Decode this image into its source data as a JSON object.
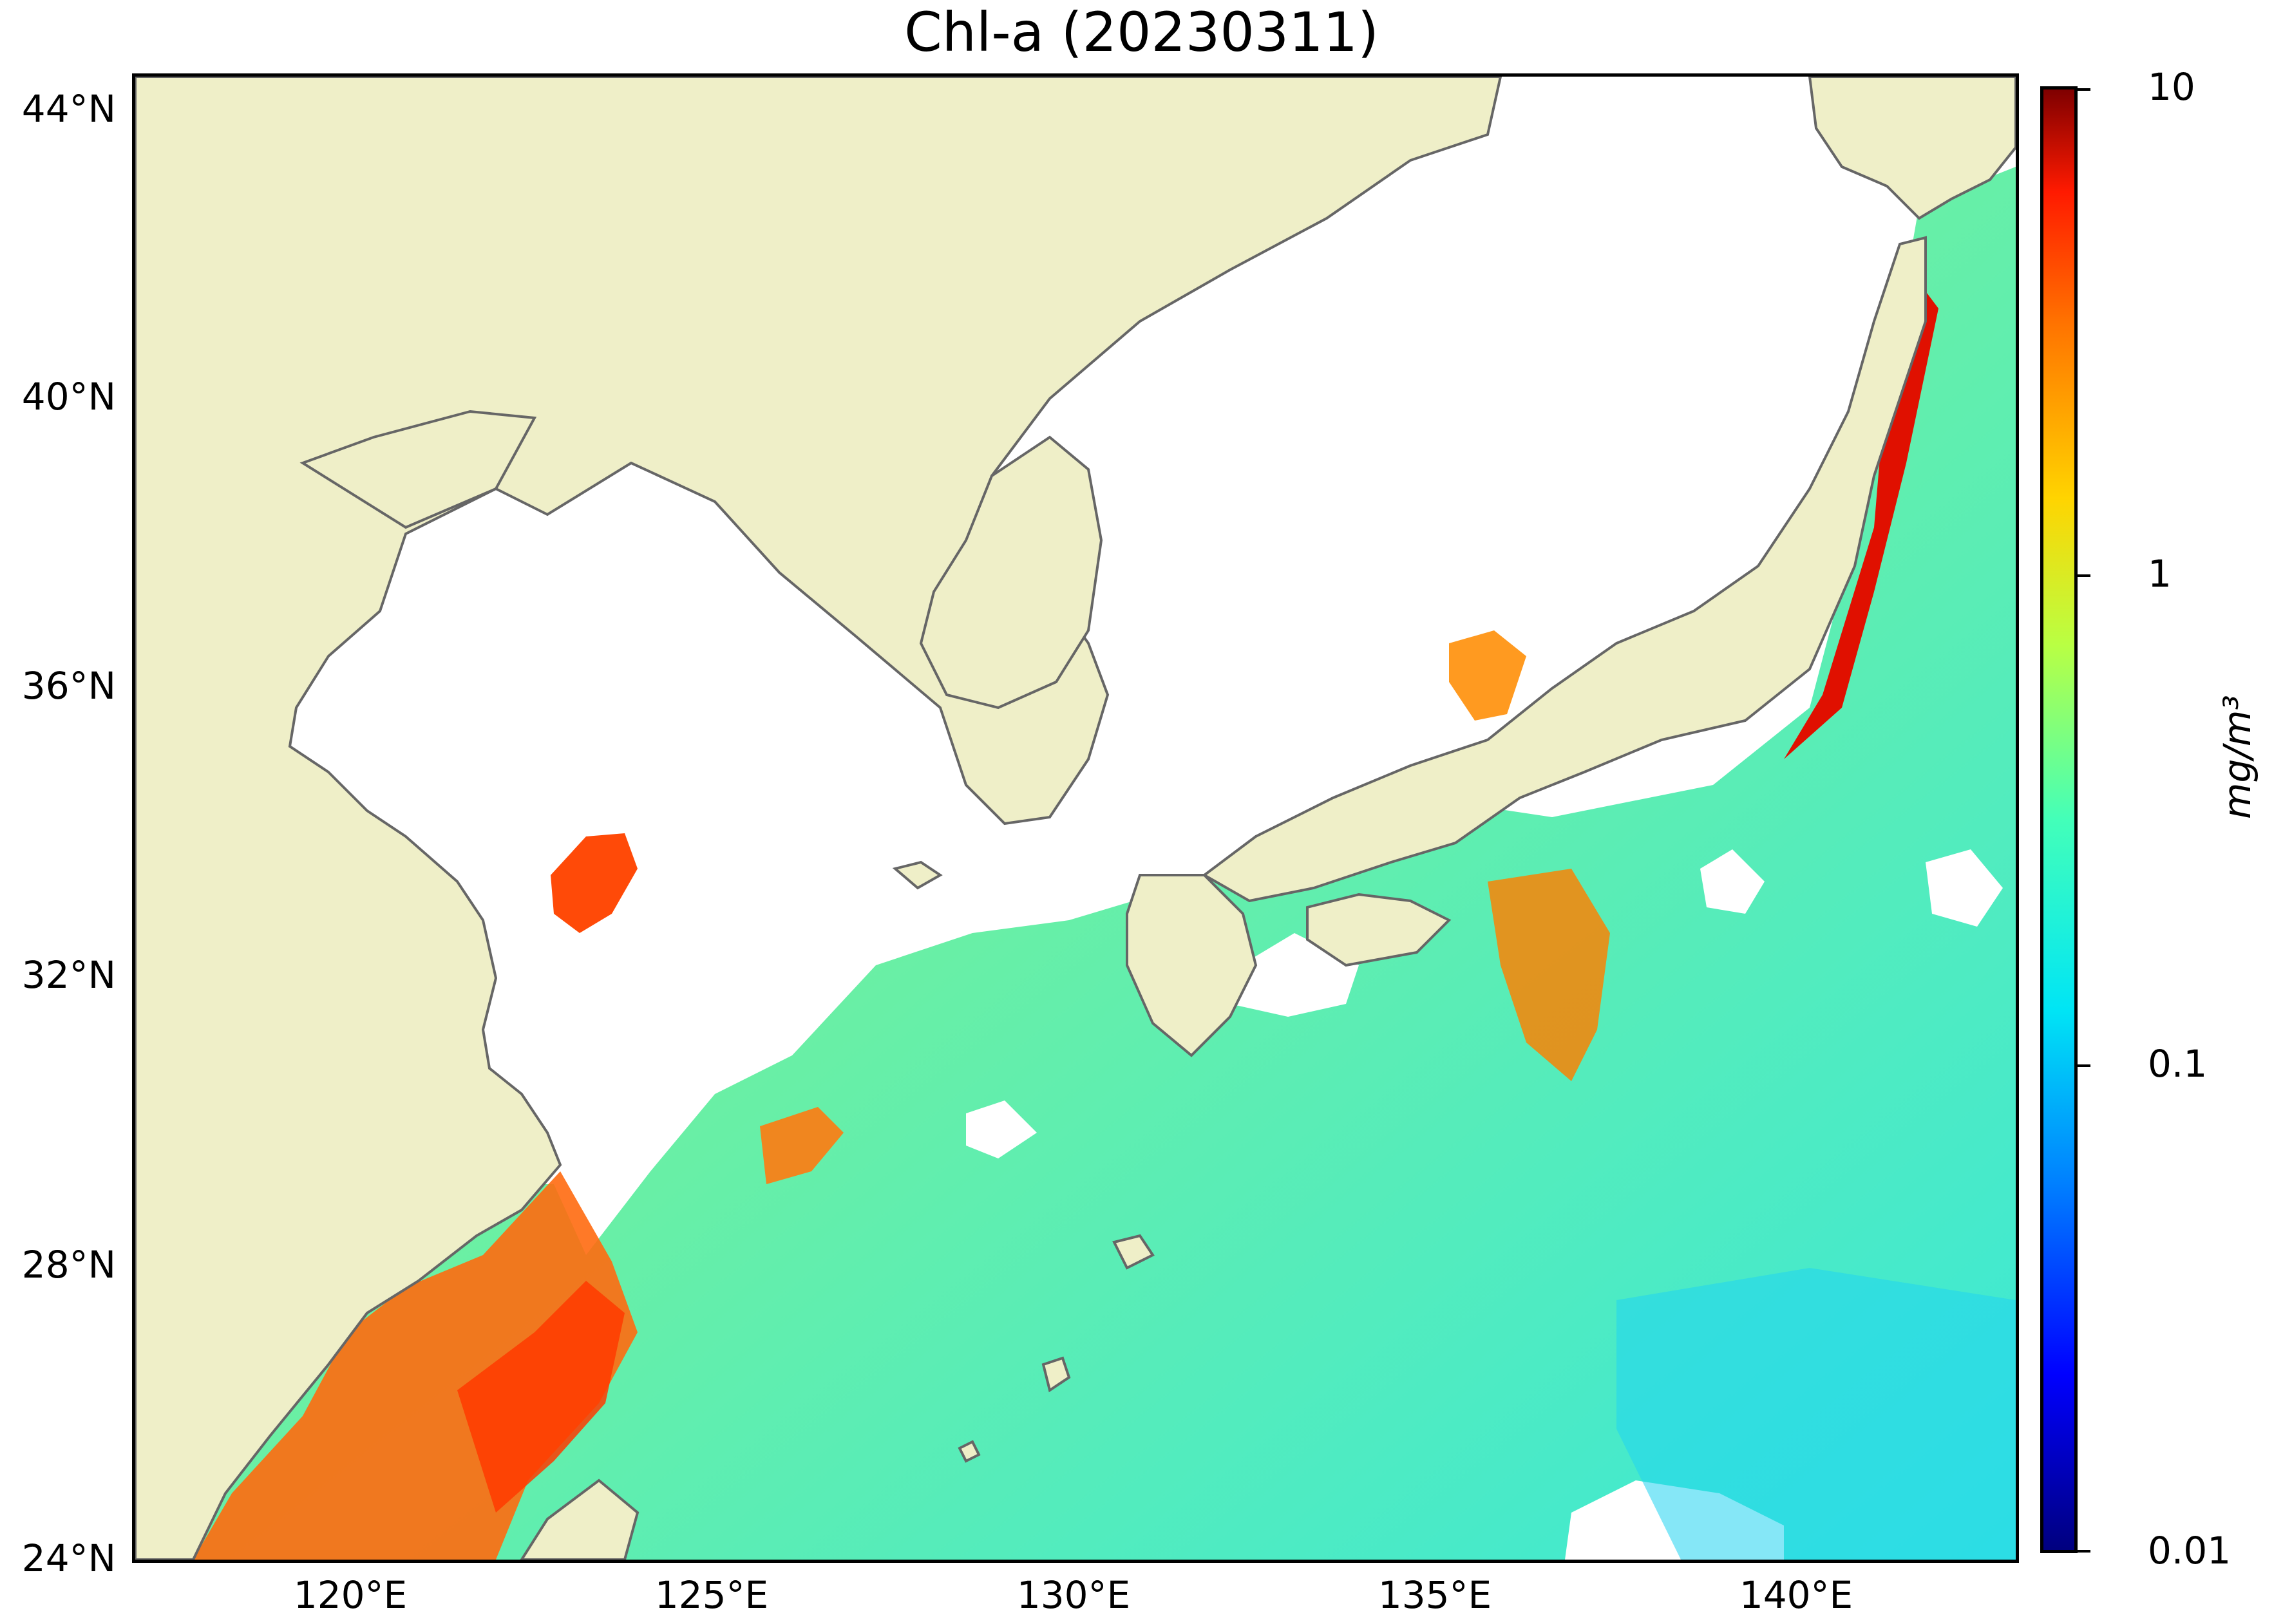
{
  "title": "Chl-a (20230311)",
  "map": {
    "lat_labels": [
      "44°N",
      "40°N",
      "36°N",
      "32°N",
      "28°N",
      "24°N"
    ],
    "lon_labels": [
      "120°E",
      "125°E",
      "130°E",
      "135°E",
      "140°E"
    ],
    "lat_range": [
      24,
      44.5
    ],
    "lon_range": [
      117,
      143
    ]
  },
  "colorbar": {
    "scale": "log",
    "range": [
      0.01,
      10
    ],
    "tick_labels": [
      "10",
      "1",
      "0.1",
      "0.01"
    ],
    "unit_label": "mg/m³",
    "colormap": "jet"
  },
  "colors": {
    "land": "#efefc8",
    "coast": "#666666",
    "no_data": "#ffffff"
  }
}
